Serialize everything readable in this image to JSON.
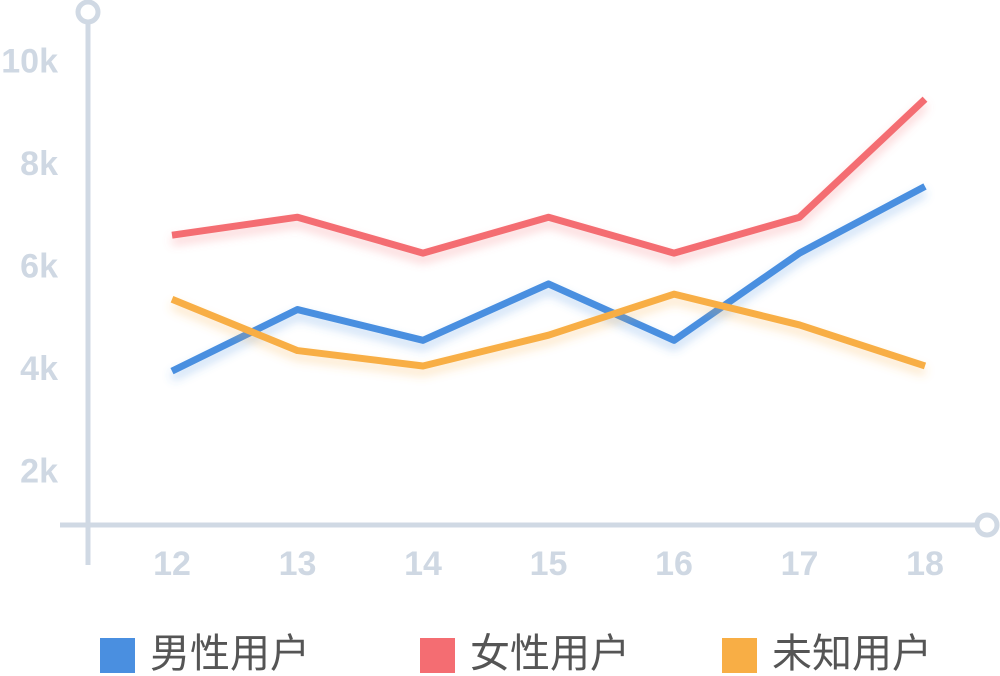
{
  "chart_data": {
    "type": "line",
    "categories": [
      "12",
      "13",
      "14",
      "15",
      "16",
      "17",
      "18"
    ],
    "series": [
      {
        "name": "男性用户",
        "color": "#4a8fe0",
        "values": [
          4000,
          5200,
          4600,
          5700,
          4600,
          6300,
          7600
        ]
      },
      {
        "name": "女性用户",
        "color": "#f46d72",
        "values": [
          6650,
          7000,
          6300,
          7000,
          6300,
          7000,
          9300
        ]
      },
      {
        "name": "未知用户",
        "color": "#f8ae45",
        "values": [
          5400,
          4400,
          4100,
          4700,
          5500,
          4900,
          4100
        ]
      }
    ],
    "ylim": [
      1000,
      11000
    ],
    "yticks": [
      {
        "value": 2000,
        "label": "2k"
      },
      {
        "value": 4000,
        "label": "4k"
      },
      {
        "value": 6000,
        "label": "6k"
      },
      {
        "value": 8000,
        "label": "8k"
      },
      {
        "value": 10000,
        "label": "10k"
      }
    ],
    "axis_color": "#d0d9e4",
    "legend": "bottom"
  }
}
